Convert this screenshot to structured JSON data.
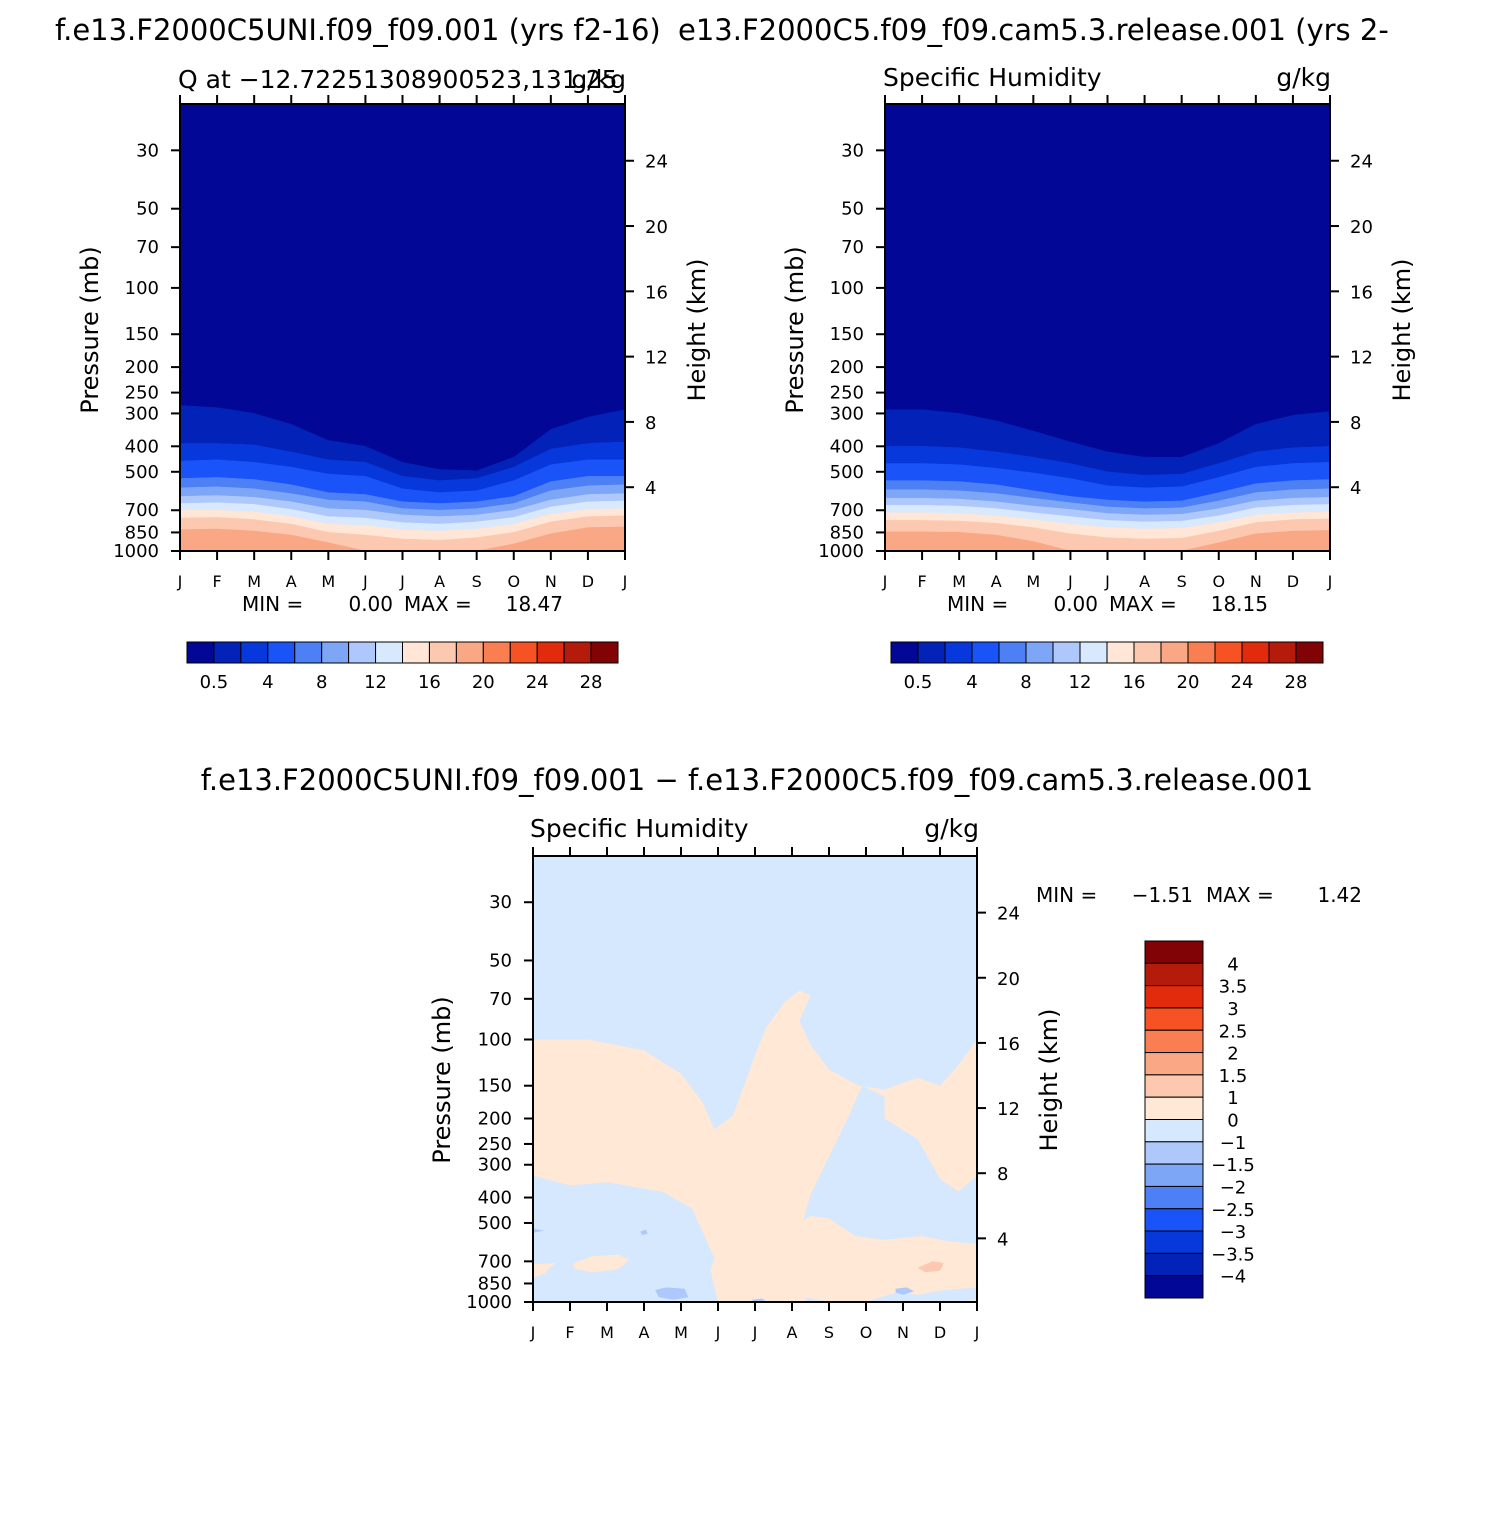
{
  "figure": {
    "header_left": "f.e13.F2000C5UNI.f09_f09.001  (yrs f2-16)",
    "header_right": "e13.F2000C5.f09_f09.cam5.3.release.001  (yrs 2-",
    "diff_title": "f.e13.F2000C5UNI.f09_f09.001 − f.e13.F2000C5.f09_f09.cam5.3.release.001"
  },
  "chart_data": [
    {
      "type": "heatmap",
      "id": "panel-case",
      "title": "Q at −12.72251308900523,131.25",
      "units": "g/kg",
      "xlabel": "",
      "ylabel": "Pressure  (mb)",
      "y2label": "Height  (km)",
      "months": [
        "J",
        "F",
        "M",
        "A",
        "M",
        "J",
        "J",
        "A",
        "S",
        "O",
        "N",
        "D",
        "J"
      ],
      "pressure_ticks": [
        30,
        50,
        70,
        100,
        150,
        200,
        250,
        300,
        400,
        500,
        700,
        850,
        1000
      ],
      "height_ticks": [
        4,
        8,
        12,
        16,
        20,
        24
      ],
      "ylim": [
        1000,
        20
      ],
      "min_label": "MIN =",
      "min_value": "0.00",
      "max_label": "MAX =",
      "max_value": "18.47",
      "colorbar": {
        "orientation": "horizontal",
        "labels": [
          "0.5",
          "4",
          "8",
          "12",
          "16",
          "20",
          "24",
          "28"
        ]
      },
      "contour_levels": [
        0.5,
        2,
        4,
        6,
        8,
        10,
        12,
        14,
        16,
        18
      ],
      "level_pressure_by_month": [
        [
          280,
          390,
          455,
          530,
          575,
          620,
          660,
          700,
          750,
          830
        ],
        [
          285,
          390,
          450,
          525,
          570,
          615,
          655,
          700,
          745,
          825
        ],
        [
          300,
          395,
          460,
          535,
          580,
          625,
          665,
          710,
          760,
          840
        ],
        [
          330,
          420,
          480,
          560,
          605,
          650,
          695,
          740,
          790,
          870
        ],
        [
          380,
          450,
          510,
          600,
          640,
          690,
          740,
          790,
          850,
          930
        ],
        [
          400,
          460,
          520,
          610,
          650,
          700,
          750,
          800,
          870,
          1100
        ],
        [
          460,
          520,
          580,
          650,
          690,
          730,
          780,
          830,
          900,
          1100
        ],
        [
          490,
          540,
          600,
          660,
          700,
          740,
          790,
          840,
          910,
          1100
        ],
        [
          495,
          530,
          590,
          650,
          690,
          730,
          775,
          825,
          890,
          1100
        ],
        [
          440,
          480,
          540,
          620,
          660,
          700,
          745,
          790,
          850,
          940
        ],
        [
          345,
          410,
          470,
          545,
          590,
          640,
          680,
          725,
          775,
          860
        ],
        [
          310,
          390,
          450,
          520,
          565,
          610,
          650,
          695,
          740,
          815
        ],
        [
          290,
          385,
          450,
          520,
          560,
          605,
          645,
          690,
          735,
          810
        ]
      ]
    },
    {
      "type": "heatmap",
      "id": "panel-control",
      "title": "Specific Humidity",
      "units": "g/kg",
      "xlabel": "",
      "ylabel": "Pressure  (mb)",
      "y2label": "Height  (km)",
      "months": [
        "J",
        "F",
        "M",
        "A",
        "M",
        "J",
        "J",
        "A",
        "S",
        "O",
        "N",
        "D",
        "J"
      ],
      "pressure_ticks": [
        30,
        50,
        70,
        100,
        150,
        200,
        250,
        300,
        400,
        500,
        700,
        850,
        1000
      ],
      "height_ticks": [
        4,
        8,
        12,
        16,
        20,
        24
      ],
      "ylim": [
        1000,
        20
      ],
      "min_label": "MIN =",
      "min_value": "0.00",
      "max_label": "MAX =",
      "max_value": "18.15",
      "colorbar": {
        "orientation": "horizontal",
        "labels": [
          "0.5",
          "4",
          "8",
          "12",
          "16",
          "20",
          "24",
          "28"
        ]
      },
      "contour_levels": [
        0.5,
        2,
        4,
        6,
        8,
        10,
        12,
        14,
        16,
        18
      ],
      "level_pressure_by_month": [
        [
          290,
          400,
          465,
          540,
          585,
          630,
          670,
          715,
          765,
          845
        ],
        [
          290,
          400,
          465,
          540,
          585,
          630,
          670,
          715,
          765,
          845
        ],
        [
          300,
          405,
          470,
          545,
          590,
          635,
          675,
          720,
          770,
          850
        ],
        [
          320,
          420,
          485,
          560,
          605,
          650,
          690,
          735,
          785,
          870
        ],
        [
          350,
          440,
          505,
          590,
          630,
          675,
          715,
          760,
          815,
          920
        ],
        [
          385,
          465,
          530,
          620,
          655,
          695,
          740,
          790,
          860,
          1100
        ],
        [
          420,
          500,
          565,
          640,
          680,
          720,
          765,
          815,
          890,
          1100
        ],
        [
          440,
          515,
          575,
          650,
          690,
          730,
          775,
          825,
          900,
          1100
        ],
        [
          440,
          510,
          570,
          645,
          685,
          725,
          770,
          820,
          895,
          1100
        ],
        [
          390,
          465,
          525,
          600,
          645,
          690,
          735,
          780,
          840,
          930
        ],
        [
          330,
          420,
          480,
          555,
          600,
          645,
          685,
          730,
          780,
          860
        ],
        [
          305,
          405,
          465,
          540,
          585,
          630,
          670,
          715,
          760,
          840
        ],
        [
          295,
          400,
          460,
          535,
          580,
          625,
          665,
          710,
          755,
          835
        ]
      ]
    },
    {
      "type": "heatmap",
      "id": "panel-diff",
      "title": "Specific Humidity",
      "units": "g/kg",
      "xlabel": "",
      "ylabel": "Pressure  (mb)",
      "y2label": "Height  (km)",
      "months": [
        "J",
        "F",
        "M",
        "A",
        "M",
        "J",
        "J",
        "A",
        "S",
        "O",
        "N",
        "D",
        "J"
      ],
      "pressure_ticks": [
        30,
        50,
        70,
        100,
        150,
        200,
        250,
        300,
        400,
        500,
        700,
        850,
        1000
      ],
      "height_ticks": [
        4,
        8,
        12,
        16,
        20,
        24
      ],
      "ylim": [
        1000,
        20
      ],
      "min_label": "MIN =",
      "min_value": "−1.51",
      "max_label": "MAX =",
      "max_value": "1.42",
      "colorbar": {
        "orientation": "vertical",
        "labels": [
          "4",
          "3.5",
          "3",
          "2.5",
          "2",
          "1.5",
          "1",
          "0",
          "−1",
          "−1.5",
          "−2",
          "−2.5",
          "−3",
          "−3.5",
          "−4"
        ]
      },
      "regions": [
        {
          "class": "0 to 1",
          "points": [
            [
              0,
              100
            ],
            [
              1.5,
              100
            ],
            [
              3,
              110
            ],
            [
              4,
              135
            ],
            [
              4.6,
              175
            ],
            [
              4.9,
              220
            ],
            [
              5.4,
              195
            ],
            [
              5.7,
              150
            ],
            [
              6,
              115
            ],
            [
              6.3,
              90
            ],
            [
              6.8,
              72
            ],
            [
              7.2,
              65
            ],
            [
              7.5,
              68
            ],
            [
              7.2,
              85
            ],
            [
              7.5,
              105
            ],
            [
              8,
              130
            ],
            [
              8.8,
              150
            ],
            [
              9.5,
              155
            ],
            [
              10.4,
              140
            ],
            [
              11,
              150
            ],
            [
              11.5,
              125
            ],
            [
              12,
              100
            ],
            [
              12,
              330
            ],
            [
              11.5,
              380
            ],
            [
              11,
              340
            ],
            [
              10.4,
              240
            ],
            [
              9.5,
              200
            ],
            [
              9.5,
              165
            ],
            [
              8.9,
              150
            ],
            [
              8.5,
              200
            ],
            [
              7.5,
              390
            ],
            [
              7,
              700
            ],
            [
              7.4,
              1000
            ],
            [
              6.1,
              1000
            ],
            [
              5,
              1000
            ],
            [
              4.8,
              760
            ],
            [
              4.9,
              680
            ],
            [
              4.3,
              440
            ],
            [
              3.5,
              380
            ],
            [
              2,
              350
            ],
            [
              1,
              360
            ],
            [
              0,
              330
            ]
          ]
        },
        {
          "class": "0 to 1",
          "points": [
            [
              1.1,
              710
            ],
            [
              1.6,
              670
            ],
            [
              2.3,
              660
            ],
            [
              2.6,
              690
            ],
            [
              2.3,
              750
            ],
            [
              1.6,
              770
            ],
            [
              1.1,
              745
            ]
          ]
        },
        {
          "class": "0 to 1",
          "points": [
            [
              0,
              720
            ],
            [
              0.6,
              710
            ],
            [
              0.3,
              780
            ],
            [
              0,
              810
            ]
          ]
        },
        {
          "class": "0 to 1",
          "points": [
            [
              6,
              660
            ],
            [
              7,
              520
            ],
            [
              7.5,
              470
            ],
            [
              8,
              480
            ],
            [
              8.7,
              560
            ],
            [
              9.5,
              580
            ],
            [
              10.5,
              560
            ],
            [
              11.3,
              590
            ],
            [
              12,
              600
            ],
            [
              12,
              880
            ],
            [
              11,
              905
            ],
            [
              10.4,
              940
            ],
            [
              9.8,
              920
            ],
            [
              9,
              1000
            ],
            [
              8,
              1000
            ],
            [
              7.2,
              950
            ],
            [
              7,
              820
            ]
          ]
        },
        {
          "class": "0 to 1",
          "points": [
            [
              12,
              980
            ],
            [
              11.5,
              1000
            ],
            [
              12,
              1000
            ]
          ]
        },
        {
          "class": "1 to 1.5",
          "points": [
            [
              10.4,
              740
            ],
            [
              10.8,
              700
            ],
            [
              11.1,
              710
            ],
            [
              11,
              760
            ],
            [
              10.6,
              770
            ]
          ]
        },
        {
          "class": "-1.5 to -1",
          "points": [
            [
              3.3,
              900
            ],
            [
              3.6,
              880
            ],
            [
              4.1,
              890
            ],
            [
              4.2,
              960
            ],
            [
              3.8,
              980
            ],
            [
              3.4,
              960
            ]
          ]
        },
        {
          "class": "-1.5 to -1",
          "points": [
            [
              9.8,
              890
            ],
            [
              10.1,
              880
            ],
            [
              10.3,
              910
            ],
            [
              10,
              940
            ],
            [
              9.8,
              920
            ]
          ]
        },
        {
          "class": "-1.5 to -1",
          "points": [
            [
              0,
              525
            ],
            [
              0.3,
              535
            ],
            [
              0,
              545
            ]
          ]
        },
        {
          "class": "-1.5 to -1",
          "points": [
            [
              2.9,
              540
            ],
            [
              3.05,
              530
            ],
            [
              3.1,
              550
            ],
            [
              2.95,
              555
            ]
          ]
        },
        {
          "class": "-1.5 to -1",
          "points": [
            [
              5.9,
              980
            ],
            [
              6.2,
              970
            ],
            [
              6.3,
              995
            ],
            [
              6,
              1000
            ]
          ]
        }
      ]
    }
  ],
  "colors": {
    "seq_palette": [
      "#020796",
      "#0322b8",
      "#0738db",
      "#1a53f7",
      "#4d7ff5",
      "#7ea6f7",
      "#afc8fb",
      "#d8e8fd",
      "#ffe6d6",
      "#fcc8b0",
      "#f9a784",
      "#f97e51",
      "#f75224",
      "#e22a0c",
      "#b41b0a",
      "#820306"
    ],
    "div_palette": [
      "#820306",
      "#b41b0a",
      "#e22a0c",
      "#f75224",
      "#f97e51",
      "#f9a784",
      "#fcc8b0",
      "#ffe8d6",
      "#d6e8fd",
      "#afc8fb",
      "#7ea6f7",
      "#4d7ff5",
      "#1a53f7",
      "#0738db",
      "#0322b8",
      "#020796"
    ],
    "diff_background": "#d6e8fd",
    "diff_warm": "#ffe8d6",
    "diff_warm2": "#fcc8b0",
    "diff_cool": "#afc8fb"
  }
}
